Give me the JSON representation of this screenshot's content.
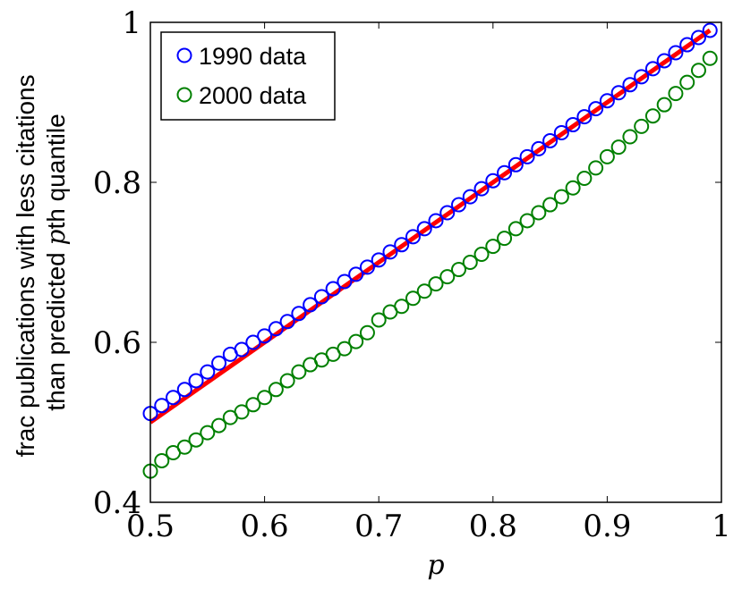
{
  "chart_data": {
    "type": "scatter",
    "xlabel": "p",
    "ylabel_line1": "frac publications with less citations",
    "ylabel_line2_prefix": "than predicted ",
    "ylabel_line2_var": "p",
    "ylabel_line2_suffix": "th quantile",
    "xlim": [
      0.5,
      1.0
    ],
    "ylim": [
      0.4,
      1.0
    ],
    "x_ticks": [
      0.5,
      0.6,
      0.7,
      0.8,
      0.9,
      1.0
    ],
    "x_tick_labels": [
      "0.5",
      "0.6",
      "0.7",
      "0.8",
      "0.9",
      "1"
    ],
    "y_ticks": [
      0.4,
      0.6,
      0.8,
      1.0
    ],
    "y_tick_labels": [
      "0.4",
      "0.6",
      "0.8",
      "1"
    ],
    "grid": false,
    "legend_position": "top-left",
    "reference_line": {
      "x": [
        0.5,
        0.99
      ],
      "y": [
        0.5,
        0.99
      ],
      "color": "#ff0000"
    },
    "series": [
      {
        "name": "1990 data",
        "marker": "circle",
        "color": "#0000ff",
        "x": [
          0.5,
          0.51,
          0.52,
          0.53,
          0.54,
          0.55,
          0.56,
          0.57,
          0.58,
          0.59,
          0.6,
          0.61,
          0.62,
          0.63,
          0.64,
          0.65,
          0.66,
          0.67,
          0.68,
          0.69,
          0.7,
          0.71,
          0.72,
          0.73,
          0.74,
          0.75,
          0.76,
          0.77,
          0.78,
          0.79,
          0.8,
          0.81,
          0.82,
          0.83,
          0.84,
          0.85,
          0.86,
          0.87,
          0.88,
          0.89,
          0.9,
          0.91,
          0.92,
          0.93,
          0.94,
          0.95,
          0.96,
          0.97,
          0.98,
          0.99
        ],
        "y": [
          0.511,
          0.521,
          0.531,
          0.541,
          0.552,
          0.563,
          0.574,
          0.585,
          0.591,
          0.6,
          0.608,
          0.617,
          0.626,
          0.636,
          0.647,
          0.657,
          0.667,
          0.676,
          0.685,
          0.694,
          0.703,
          0.713,
          0.722,
          0.732,
          0.742,
          0.752,
          0.762,
          0.772,
          0.782,
          0.792,
          0.802,
          0.812,
          0.822,
          0.832,
          0.842,
          0.852,
          0.862,
          0.872,
          0.882,
          0.892,
          0.902,
          0.912,
          0.922,
          0.932,
          0.942,
          0.952,
          0.962,
          0.972,
          0.981,
          0.99
        ]
      },
      {
        "name": "2000 data",
        "marker": "circle",
        "color": "#008000",
        "x": [
          0.5,
          0.51,
          0.52,
          0.53,
          0.54,
          0.55,
          0.56,
          0.57,
          0.58,
          0.59,
          0.6,
          0.61,
          0.62,
          0.63,
          0.64,
          0.65,
          0.66,
          0.67,
          0.68,
          0.69,
          0.7,
          0.71,
          0.72,
          0.73,
          0.74,
          0.75,
          0.76,
          0.77,
          0.78,
          0.79,
          0.8,
          0.81,
          0.82,
          0.83,
          0.84,
          0.85,
          0.86,
          0.87,
          0.88,
          0.89,
          0.9,
          0.91,
          0.92,
          0.93,
          0.94,
          0.95,
          0.96,
          0.97,
          0.98,
          0.99
        ],
        "y": [
          0.439,
          0.452,
          0.462,
          0.469,
          0.478,
          0.487,
          0.496,
          0.506,
          0.513,
          0.522,
          0.531,
          0.541,
          0.552,
          0.563,
          0.572,
          0.578,
          0.585,
          0.592,
          0.601,
          0.612,
          0.628,
          0.638,
          0.645,
          0.655,
          0.664,
          0.673,
          0.682,
          0.691,
          0.7,
          0.71,
          0.72,
          0.73,
          0.742,
          0.752,
          0.762,
          0.772,
          0.782,
          0.793,
          0.805,
          0.818,
          0.832,
          0.844,
          0.857,
          0.87,
          0.883,
          0.897,
          0.911,
          0.925,
          0.94,
          0.955
        ]
      }
    ]
  }
}
